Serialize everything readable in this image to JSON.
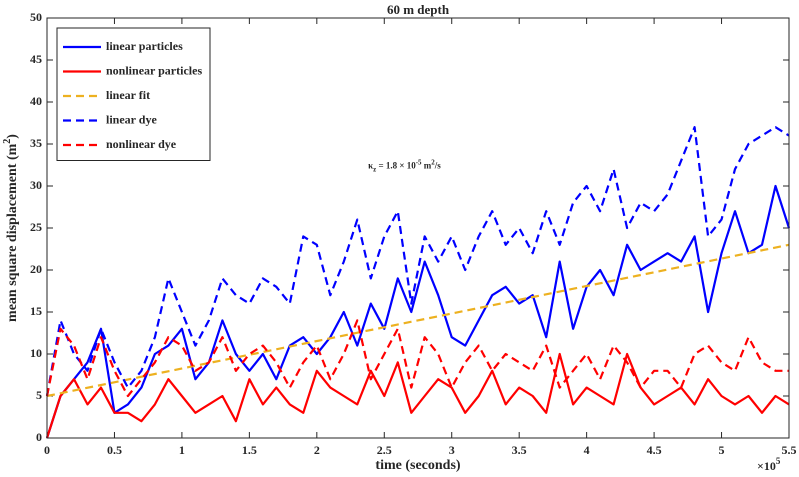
{
  "chart_data": {
    "type": "line",
    "title": "60 m depth",
    "x_label": "time (seconds)",
    "y_label": {
      "text": "mean square displacement (m",
      "sup": "2",
      "tail": ")"
    },
    "x_multiplier": {
      "text": "×10",
      "sup": "5"
    },
    "annotation": {
      "base": "κ",
      "sub": "z",
      "mid": " = 1.8 × 10",
      "exp": "-5",
      "unit": " m",
      "unit_exp": "2",
      "tail": "/s"
    },
    "xlim": [
      0,
      5.5
    ],
    "ylim": [
      0,
      50
    ],
    "xticks": [
      0,
      0.5,
      1,
      1.5,
      2,
      2.5,
      3,
      3.5,
      4,
      4.5,
      5,
      5.5
    ],
    "yticks": [
      0,
      5,
      10,
      15,
      20,
      25,
      30,
      35,
      40,
      45,
      50
    ],
    "grid": false,
    "legend_position": "upper-left",
    "x": [
      0,
      0.1,
      0.2,
      0.3,
      0.4,
      0.5,
      0.6,
      0.7,
      0.8,
      0.9,
      1,
      1.1,
      1.2,
      1.3,
      1.4,
      1.5,
      1.6,
      1.7,
      1.8,
      1.9,
      2,
      2.1,
      2.2,
      2.3,
      2.4,
      2.5,
      2.6,
      2.7,
      2.8,
      2.9,
      3,
      3.1,
      3.2,
      3.3,
      3.4,
      3.5,
      3.6,
      3.7,
      3.8,
      3.9,
      4,
      4.1,
      4.2,
      4.3,
      4.4,
      4.5,
      4.6,
      4.7,
      4.8,
      4.9,
      5,
      5.1,
      5.2,
      5.3,
      5.4,
      5.5
    ],
    "series": [
      {
        "name": "linear particles",
        "color": "#0000ff",
        "dashed": false,
        "values": [
          0,
          5,
          7,
          9,
          13,
          3,
          4,
          6,
          10,
          11,
          13,
          7,
          9,
          14,
          10,
          8,
          10,
          7,
          11,
          12,
          10,
          12,
          15,
          11,
          16,
          13,
          19,
          15,
          21,
          17,
          12,
          11,
          14,
          17,
          18,
          16,
          17,
          12,
          21,
          13,
          18,
          20,
          17,
          23,
          20,
          21,
          22,
          21,
          24,
          15,
          22,
          27,
          22,
          23,
          30,
          25
        ]
      },
      {
        "name": "nonlinear particles",
        "color": "#ff0000",
        "dashed": false,
        "values": [
          0,
          5,
          7,
          4,
          6,
          3,
          3,
          2,
          4,
          7,
          5,
          3,
          4,
          5,
          2,
          7,
          4,
          6,
          4,
          3,
          8,
          6,
          5,
          4,
          8,
          5,
          9,
          3,
          5,
          7,
          6,
          3,
          5,
          8,
          4,
          6,
          5,
          3,
          10,
          4,
          6,
          5,
          4,
          10,
          6,
          4,
          5,
          6,
          4,
          7,
          5,
          4,
          5,
          3,
          5,
          4
        ]
      },
      {
        "name": "linear fit",
        "color": "#edb120",
        "dashed": true,
        "x": [
          0,
          5.5
        ],
        "values": [
          5,
          23
        ]
      },
      {
        "name": "linear dye",
        "color": "#0000ff",
        "dashed": true,
        "values": [
          5,
          14,
          10,
          8,
          13,
          9,
          6,
          8,
          12,
          19,
          15,
          11,
          14,
          19,
          17,
          16,
          19,
          18,
          16,
          24,
          23,
          17,
          21,
          26,
          19,
          24,
          27,
          16,
          24,
          21,
          24,
          20,
          24,
          27,
          23,
          25,
          22,
          27,
          23,
          28,
          30,
          27,
          32,
          25,
          28,
          27,
          29,
          33,
          37,
          24,
          26,
          32,
          35,
          36,
          37,
          36
        ]
      },
      {
        "name": "nonlinear dye",
        "color": "#ff0000",
        "dashed": true,
        "values": [
          5,
          13,
          11,
          7,
          12,
          8,
          5,
          7,
          9,
          12,
          11,
          8,
          9,
          12,
          8,
          10,
          11,
          9,
          6,
          9,
          11,
          7,
          10,
          14,
          7,
          10,
          13,
          6,
          12,
          10,
          6,
          9,
          11,
          8,
          10,
          9,
          8,
          11,
          6,
          8,
          10,
          7,
          11,
          9,
          6,
          8,
          8,
          6,
          10,
          11,
          9,
          8,
          12,
          9,
          8,
          8
        ]
      }
    ]
  }
}
